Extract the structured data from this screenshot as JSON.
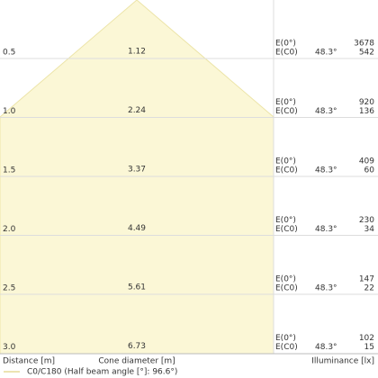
{
  "rows": [
    {
      "distance": "0.5",
      "diameter": "1.12",
      "e0_label": "E(0°)",
      "ec0_label": "E(C0)",
      "angle": "48.3°",
      "e0": "3678",
      "ec0": "542"
    },
    {
      "distance": "1.0",
      "diameter": "2.24",
      "e0_label": "E(0°)",
      "ec0_label": "E(C0)",
      "angle": "48.3°",
      "e0": "920",
      "ec0": "136"
    },
    {
      "distance": "1.5",
      "diameter": "3.37",
      "e0_label": "E(0°)",
      "ec0_label": "E(C0)",
      "angle": "48.3°",
      "e0": "409",
      "ec0": "60"
    },
    {
      "distance": "2.0",
      "diameter": "4.49",
      "e0_label": "E(0°)",
      "ec0_label": "E(C0)",
      "angle": "48.3°",
      "e0": "230",
      "ec0": "34"
    },
    {
      "distance": "2.5",
      "diameter": "5.61",
      "e0_label": "E(0°)",
      "ec0_label": "E(C0)",
      "angle": "48.3°",
      "e0": "147",
      "ec0": "22"
    },
    {
      "distance": "3.0",
      "diameter": "6.73",
      "e0_label": "E(0°)",
      "ec0_label": "E(C0)",
      "angle": "48.3°",
      "e0": "102",
      "ec0": "15"
    }
  ],
  "footer": {
    "distance": "Distance [m]",
    "diameter": "Cone diameter [m]",
    "illuminance": "Illuminance [lx]"
  },
  "legend": {
    "label": "C0/C180 (Half beam angle [°]: 96.6°)"
  }
}
